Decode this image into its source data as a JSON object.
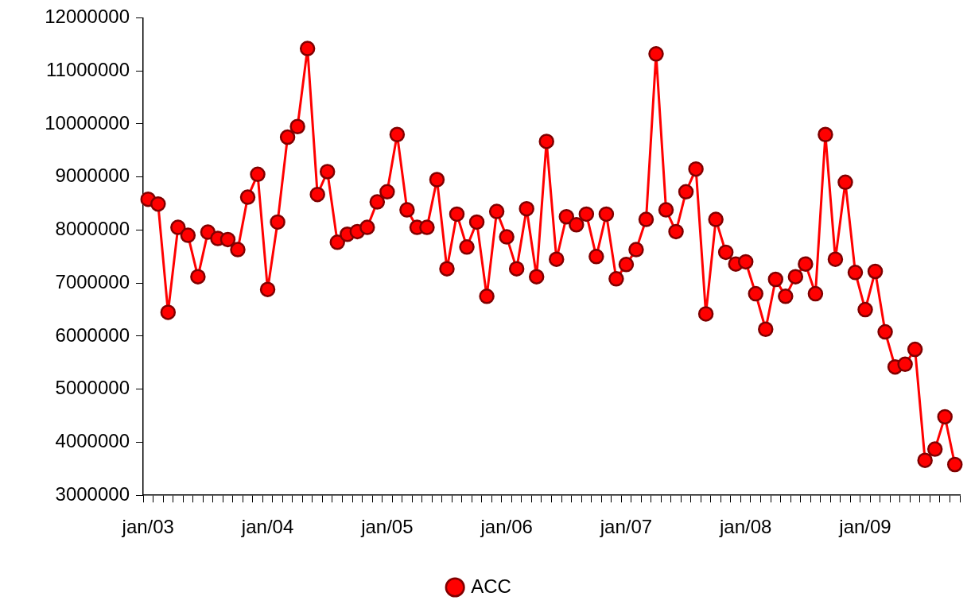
{
  "chart_data": {
    "type": "line",
    "categories": [
      "jan/03",
      null,
      null,
      null,
      null,
      null,
      null,
      null,
      null,
      null,
      null,
      null,
      "jan/04",
      null,
      null,
      null,
      null,
      null,
      null,
      null,
      null,
      null,
      null,
      null,
      "jan/05",
      null,
      null,
      null,
      null,
      null,
      null,
      null,
      null,
      null,
      null,
      null,
      "jan/06",
      null,
      null,
      null,
      null,
      null,
      null,
      null,
      null,
      null,
      null,
      null,
      "jan/07",
      null,
      null,
      null,
      null,
      null,
      null,
      null,
      null,
      null,
      null,
      null,
      "jan/08",
      null,
      null,
      null,
      null,
      null,
      null,
      null,
      null,
      null,
      null,
      null,
      "jan/09",
      null,
      null,
      null,
      null,
      null,
      null,
      null,
      null,
      null
    ],
    "series": [
      {
        "name": "ACC",
        "color": "#ff0000",
        "values": [
          8580000,
          8490000,
          6450000,
          8050000,
          7900000,
          7120000,
          7960000,
          7840000,
          7820000,
          7630000,
          8620000,
          9050000,
          6880000,
          8150000,
          9750000,
          9950000,
          11420000,
          8670000,
          9100000,
          7770000,
          7920000,
          7970000,
          8050000,
          8530000,
          8720000,
          9800000,
          8380000,
          8050000,
          8050000,
          8950000,
          7270000,
          8300000,
          7680000,
          8150000,
          6750000,
          8350000,
          7870000,
          7270000,
          8400000,
          7120000,
          9670000,
          7450000,
          8250000,
          8100000,
          8300000,
          7500000,
          8300000,
          7080000,
          7350000,
          7630000,
          8200000,
          11320000,
          8380000,
          7970000,
          8720000,
          9150000,
          6420000,
          8200000,
          7580000,
          7360000,
          7400000,
          6800000,
          6130000,
          7070000,
          6750000,
          7120000,
          7360000,
          6800000,
          9800000,
          7450000,
          8900000,
          7200000,
          6500000,
          7220000,
          6080000,
          5420000,
          5470000,
          5750000,
          3660000,
          3870000,
          4480000,
          3580000
        ]
      }
    ],
    "ylim": [
      3000000,
      12000000
    ],
    "yticks": [
      3000000,
      4000000,
      5000000,
      6000000,
      7000000,
      8000000,
      9000000,
      10000000,
      11000000,
      12000000
    ],
    "legend": "bottom",
    "marker": "circle",
    "line_style": "solid",
    "grid": false
  }
}
